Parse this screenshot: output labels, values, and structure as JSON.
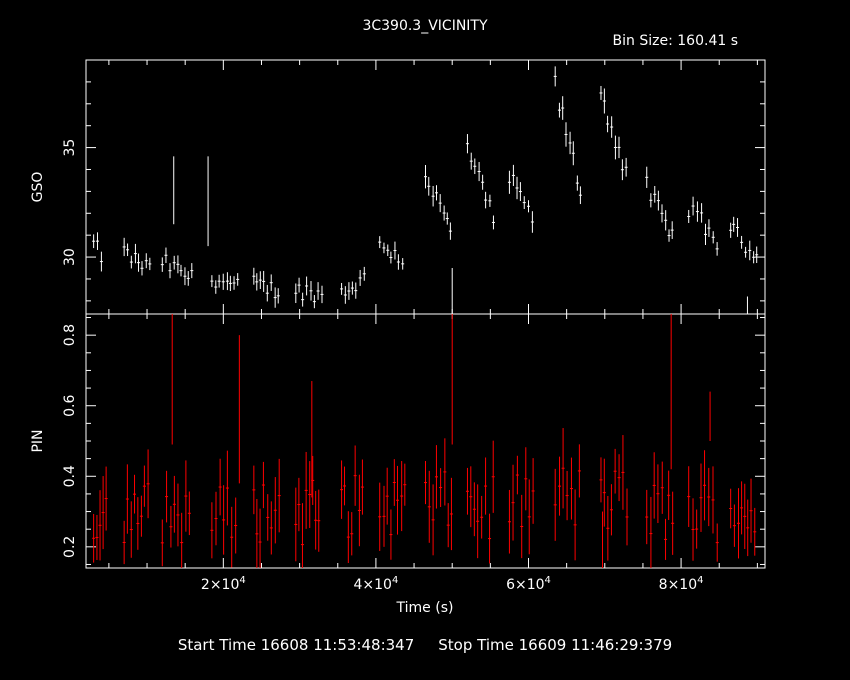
{
  "chart_data": {
    "type": "scatter",
    "title": "3C390.3_VICINITY",
    "subtitle": "Bin Size: 160.41 s",
    "xlabel": "Time (s)",
    "xlim": [
      2000,
      91000
    ],
    "xticks": [
      {
        "value": 20000,
        "mantissa": "2",
        "exp": "4"
      },
      {
        "value": 40000,
        "mantissa": "4",
        "exp": "4"
      },
      {
        "value": 60000,
        "mantissa": "6",
        "exp": "4"
      },
      {
        "value": 80000,
        "mantissa": "8",
        "exp": "4"
      }
    ],
    "panels": [
      {
        "name": "GSO",
        "ylabel": "GSO",
        "color": "#ffffff",
        "ylim": [
          27.4,
          39.0
        ],
        "yticks": [
          30,
          35
        ],
        "segments": [
          {
            "x": [
              3000,
              4500
            ],
            "y": [
              30.6,
              29.8
            ],
            "noise": 0.4
          },
          {
            "x": [
              7000,
              10500
            ],
            "y": [
              30.2,
              29.4
            ],
            "noise": 0.4
          },
          {
            "x": [
              12000,
              16000
            ],
            "y": [
              29.8,
              29.0
            ],
            "noise": 0.4
          },
          {
            "x": [
              18500,
              22000
            ],
            "y": [
              29.1,
              28.6
            ],
            "noise": 0.4
          },
          {
            "x": [
              24000,
              27500
            ],
            "y": [
              28.8,
              28.4
            ],
            "noise": 0.4
          },
          {
            "x": [
              29500,
              33000
            ],
            "y": [
              28.5,
              28.3
            ],
            "noise": 0.4
          },
          {
            "x": [
              35500,
              38500
            ],
            "y": [
              28.4,
              29.0
            ],
            "noise": 0.4
          },
          {
            "x": [
              40500,
              44000
            ],
            "y": [
              30.7,
              29.7
            ],
            "noise": 0.4
          },
          {
            "x": [
              46500,
              50000
            ],
            "y": [
              33.8,
              31.0
            ],
            "noise": 0.45
          },
          {
            "x": [
              52000,
              55500
            ],
            "y": [
              35.0,
              31.6
            ],
            "noise": 0.45
          },
          {
            "x": [
              57500,
              61000
            ],
            "y": [
              33.6,
              31.5
            ],
            "noise": 0.45
          },
          {
            "x": [
              63500,
              67000
            ],
            "y": [
              37.8,
              32.8
            ],
            "noise": 0.5
          },
          {
            "x": [
              69500,
              73000
            ],
            "y": [
              37.5,
              33.6
            ],
            "noise": 0.5
          },
          {
            "x": [
              75500,
              79000
            ],
            "y": [
              33.2,
              30.8
            ],
            "noise": 0.45
          },
          {
            "x": [
              81000,
              85000
            ],
            "y": [
              32.3,
              30.6
            ],
            "noise": 0.45
          },
          {
            "x": [
              86500,
              90000
            ],
            "y": [
              31.3,
              30.0
            ],
            "noise": 0.4
          }
        ],
        "spikes": [
          {
            "x": 13500,
            "lo": 31.5,
            "hi": 34.6
          },
          {
            "x": 18000,
            "lo": 30.5,
            "hi": 34.6
          },
          {
            "x": 50000,
            "lo": 27.4,
            "hi": 29.5
          },
          {
            "x": 88700,
            "lo": 27.4,
            "hi": 28.2
          }
        ]
      },
      {
        "name": "PIN",
        "ylabel": "PIN",
        "color": "#ff0000",
        "ylim": [
          0.14,
          0.86
        ],
        "yticks": [
          0.2,
          0.4,
          0.6,
          0.8
        ],
        "segments": [
          {
            "x": [
              3000,
              5000
            ],
            "y": [
              0.3,
              0.3
            ],
            "noise": 0.09
          },
          {
            "x": [
              7000,
              10500
            ],
            "y": [
              0.3,
              0.3
            ],
            "noise": 0.09
          },
          {
            "x": [
              12000,
              16000
            ],
            "y": [
              0.29,
              0.3
            ],
            "noise": 0.09
          },
          {
            "x": [
              18500,
              22000
            ],
            "y": [
              0.28,
              0.3
            ],
            "noise": 0.09
          },
          {
            "x": [
              24000,
              27500
            ],
            "y": [
              0.3,
              0.31
            ],
            "noise": 0.09
          },
          {
            "x": [
              29500,
              33000
            ],
            "y": [
              0.3,
              0.3
            ],
            "noise": 0.1
          },
          {
            "x": [
              35500,
              38500
            ],
            "y": [
              0.31,
              0.32
            ],
            "noise": 0.09
          },
          {
            "x": [
              40500,
              44000
            ],
            "y": [
              0.32,
              0.32
            ],
            "noise": 0.09
          },
          {
            "x": [
              46500,
              50000
            ],
            "y": [
              0.33,
              0.32
            ],
            "noise": 0.09
          },
          {
            "x": [
              52000,
              55500
            ],
            "y": [
              0.32,
              0.31
            ],
            "noise": 0.09
          },
          {
            "x": [
              57500,
              61000
            ],
            "y": [
              0.33,
              0.32
            ],
            "noise": 0.09
          },
          {
            "x": [
              63500,
              67000
            ],
            "y": [
              0.35,
              0.33
            ],
            "noise": 0.1
          },
          {
            "x": [
              69500,
              73000
            ],
            "y": [
              0.34,
              0.32
            ],
            "noise": 0.1
          },
          {
            "x": [
              75500,
              79000
            ],
            "y": [
              0.31,
              0.29
            ],
            "noise": 0.09
          },
          {
            "x": [
              81000,
              85000
            ],
            "y": [
              0.3,
              0.3
            ],
            "noise": 0.09
          },
          {
            "x": [
              86500,
              90000
            ],
            "y": [
              0.31,
              0.3
            ],
            "noise": 0.09
          }
        ],
        "spikes": [
          {
            "x": 13300,
            "lo": 0.49,
            "hi": 0.86
          },
          {
            "x": 22100,
            "lo": 0.38,
            "hi": 0.8
          },
          {
            "x": 31600,
            "lo": 0.34,
            "hi": 0.67
          },
          {
            "x": 50000,
            "lo": 0.49,
            "hi": 0.86
          },
          {
            "x": 78700,
            "lo": 0.42,
            "hi": 0.86
          },
          {
            "x": 83800,
            "lo": 0.5,
            "hi": 0.64
          },
          {
            "x": 69700,
            "lo": 0.14,
            "hi": 0.3
          }
        ]
      }
    ],
    "grid": false
  },
  "footer": {
    "start_time": "Start Time 16608 11:53:48:347",
    "stop_time": "Stop Time 16609 11:46:29:379"
  }
}
